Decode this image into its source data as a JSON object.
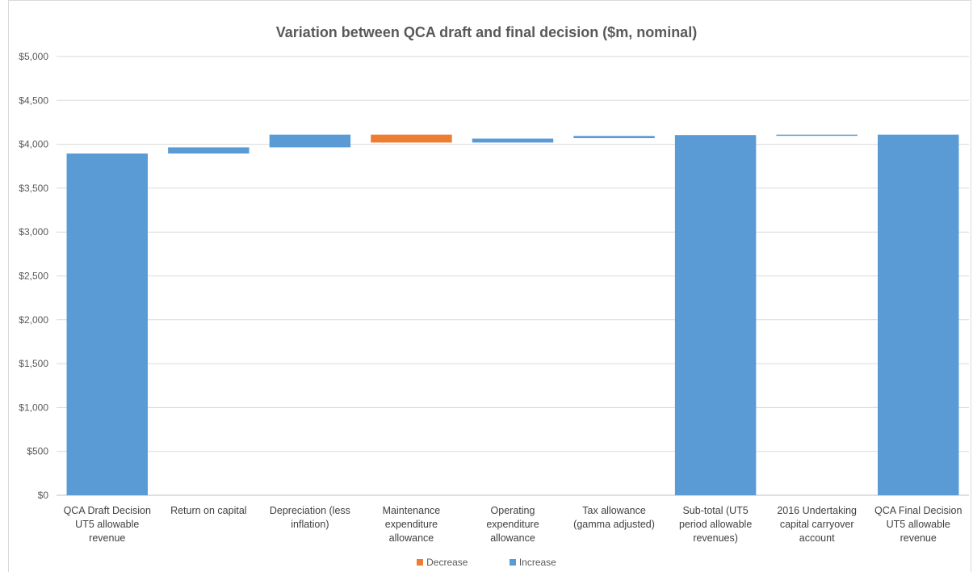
{
  "chart_data": {
    "type": "bar",
    "subtype": "waterfall",
    "title": "Variation between QCA draft and final decision ($m, nominal)",
    "xlabel": "",
    "ylabel": "",
    "ylim": [
      0,
      5000
    ],
    "yticks": [
      "$0",
      "$500",
      "$1,000",
      "$1,500",
      "$2,000",
      "$2,500",
      "$3,000",
      "$3,500",
      "$4,000",
      "$4,500",
      "$5,000"
    ],
    "ytick_values": [
      0,
      500,
      1000,
      1500,
      2000,
      2500,
      3000,
      3500,
      4000,
      4500,
      5000
    ],
    "grid": true,
    "legend_position": "bottom",
    "categories": [
      [
        "QCA Draft Decision",
        "UT5 allowable",
        "revenue"
      ],
      [
        "Return on capital"
      ],
      [
        "Depreciation (less",
        "inflation)"
      ],
      [
        "Maintenance",
        "expenditure",
        "allowance"
      ],
      [
        "Operating",
        "expenditure",
        "allowance"
      ],
      [
        "Tax allowance",
        "(gamma adjusted)"
      ],
      [
        "Sub-total (UT5",
        "period allowable",
        "revenues)"
      ],
      [
        "2016 Undertaking",
        "capital carryover",
        "account"
      ],
      [
        "QCA Final Decision",
        "UT5 allowable",
        "revenue"
      ]
    ],
    "bars": [
      {
        "base": 0,
        "top": 3895,
        "kind": "increase"
      },
      {
        "base": 3895,
        "top": 3965,
        "kind": "increase"
      },
      {
        "base": 3965,
        "top": 4110,
        "kind": "increase"
      },
      {
        "base": 4020,
        "top": 4110,
        "kind": "decrease"
      },
      {
        "base": 4020,
        "top": 4065,
        "kind": "increase"
      },
      {
        "base": 4070,
        "top": 4095,
        "kind": "increase"
      },
      {
        "base": 0,
        "top": 4105,
        "kind": "increase"
      },
      {
        "base": 4105,
        "top": 4110,
        "kind": "increase"
      },
      {
        "base": 0,
        "top": 4110,
        "kind": "increase"
      }
    ],
    "series": [
      {
        "name": "Decrease",
        "color": "#ed7d31"
      },
      {
        "name": "Increase",
        "color": "#5b9bd5"
      }
    ]
  }
}
